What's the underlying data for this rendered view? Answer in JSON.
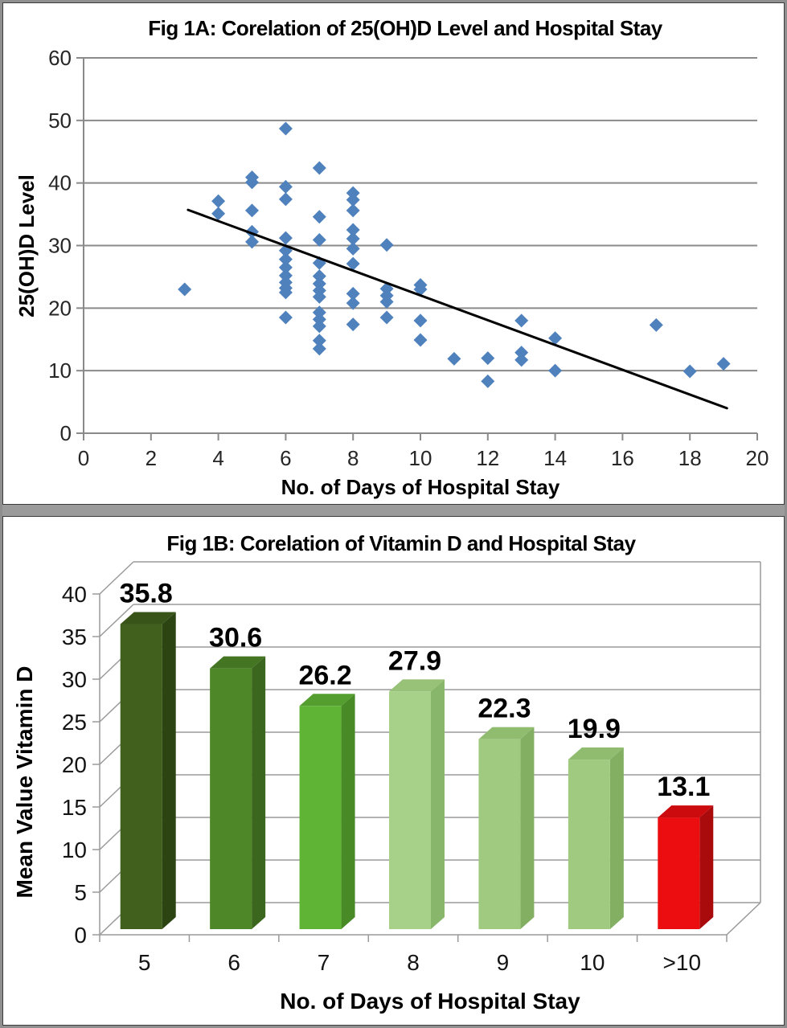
{
  "page": {
    "outer_border_color": "#8f8f8f",
    "panel_border_color": "#3c3c3c",
    "divider_color": "#9b9b9b",
    "background": "#ffffff"
  },
  "chart_data": [
    {
      "type": "scatter",
      "title": "Fig 1A: Corelation of 25(OH)D Level and Hospital Stay",
      "xlabel": "No. of Days of Hospital Stay",
      "ylabel": "25(OH)D Level",
      "xlim": [
        0,
        20
      ],
      "ylim": [
        0,
        60
      ],
      "xticks": [
        0,
        2,
        4,
        6,
        8,
        10,
        12,
        14,
        16,
        18,
        20
      ],
      "yticks": [
        0,
        10,
        20,
        30,
        40,
        50,
        60
      ],
      "grid": "horizontal",
      "legend": "none",
      "marker": {
        "shape": "diamond",
        "color": "#4f81bd"
      },
      "grid_color": "#8a8a8a",
      "axis_color": "#8a8a8a",
      "tick_label_color": "#262626",
      "points": [
        [
          3,
          23.0
        ],
        [
          4,
          37.1
        ],
        [
          4,
          35.1
        ],
        [
          5,
          40.9
        ],
        [
          5,
          40.1
        ],
        [
          5,
          35.6
        ],
        [
          5,
          32.2
        ],
        [
          5,
          30.6
        ],
        [
          6,
          48.7
        ],
        [
          6,
          39.4
        ],
        [
          6,
          37.4
        ],
        [
          6,
          31.2
        ],
        [
          6,
          29.2
        ],
        [
          6,
          27.8
        ],
        [
          6,
          26.5
        ],
        [
          6,
          25.2
        ],
        [
          6,
          24.1
        ],
        [
          6,
          23.2
        ],
        [
          6,
          22.5
        ],
        [
          6,
          18.5
        ],
        [
          7,
          42.4
        ],
        [
          7,
          34.6
        ],
        [
          7,
          30.9
        ],
        [
          7,
          27.2
        ],
        [
          7,
          25.1
        ],
        [
          7,
          23.9
        ],
        [
          7,
          22.8
        ],
        [
          7,
          21.8
        ],
        [
          7,
          19.3
        ],
        [
          7,
          18.2
        ],
        [
          7,
          17.1
        ],
        [
          7,
          14.8
        ],
        [
          7,
          13.5
        ],
        [
          8,
          38.4
        ],
        [
          8,
          37.3
        ],
        [
          8,
          35.6
        ],
        [
          8,
          32.5
        ],
        [
          8,
          31.1
        ],
        [
          8,
          29.5
        ],
        [
          8,
          27.1
        ],
        [
          8,
          22.3
        ],
        [
          8,
          20.8
        ],
        [
          8,
          17.4
        ],
        [
          9,
          30.1
        ],
        [
          9,
          23.1
        ],
        [
          9,
          22.0
        ],
        [
          9,
          21.0
        ],
        [
          9,
          18.5
        ],
        [
          10,
          23.7
        ],
        [
          10,
          23.0
        ],
        [
          10,
          18.0
        ],
        [
          10,
          14.9
        ],
        [
          11,
          11.9
        ],
        [
          12,
          12.0
        ],
        [
          12,
          8.3
        ],
        [
          13,
          18.0
        ],
        [
          13,
          12.9
        ],
        [
          13,
          11.7
        ],
        [
          14,
          15.2
        ],
        [
          14,
          10.0
        ],
        [
          17,
          17.3
        ],
        [
          18,
          9.9
        ],
        [
          19,
          11.1
        ]
      ],
      "trendline": {
        "from": [
          3.1,
          35.7
        ],
        "to": [
          19.1,
          4.0
        ],
        "color": "#000000"
      }
    },
    {
      "type": "bar",
      "style": "3d",
      "title": "Fig 1B: Corelation of Vitamin D and Hospital Stay",
      "xlabel": "No. of Days  of Hospital Stay",
      "ylabel": "Mean Value Vitamin D",
      "categories": [
        "5",
        "6",
        "7",
        "8",
        "9",
        "10",
        ">10"
      ],
      "values": [
        35.8,
        30.6,
        26.2,
        27.9,
        22.3,
        19.9,
        13.1
      ],
      "value_labels": [
        "35.8",
        "30.6",
        "26.2",
        "27.9",
        "22.3",
        "19.9",
        "13.1"
      ],
      "ylim": [
        0,
        40
      ],
      "yticks": [
        0,
        5,
        10,
        15,
        20,
        25,
        30,
        35,
        40
      ],
      "grid": "horizontal",
      "legend": "none",
      "line_color": "#9a9a9a",
      "tick_label_color": "#141414",
      "bar_colors": [
        {
          "front": "#42601d",
          "side": "#2c4412",
          "top": "#395419"
        },
        {
          "front": "#4e8727",
          "side": "#3a661d",
          "top": "#447522"
        },
        {
          "front": "#5fb335",
          "side": "#478a26",
          "top": "#539e2e"
        },
        {
          "front": "#a7d189",
          "side": "#88b66a",
          "top": "#97c277"
        },
        {
          "front": "#a0ca80",
          "side": "#82af62",
          "top": "#90bc70"
        },
        {
          "front": "#a0ca80",
          "side": "#82af62",
          "top": "#90bc70"
        },
        {
          "front": "#ec0d10",
          "side": "#a90a0c",
          "top": "#cb0b0e"
        }
      ]
    }
  ]
}
